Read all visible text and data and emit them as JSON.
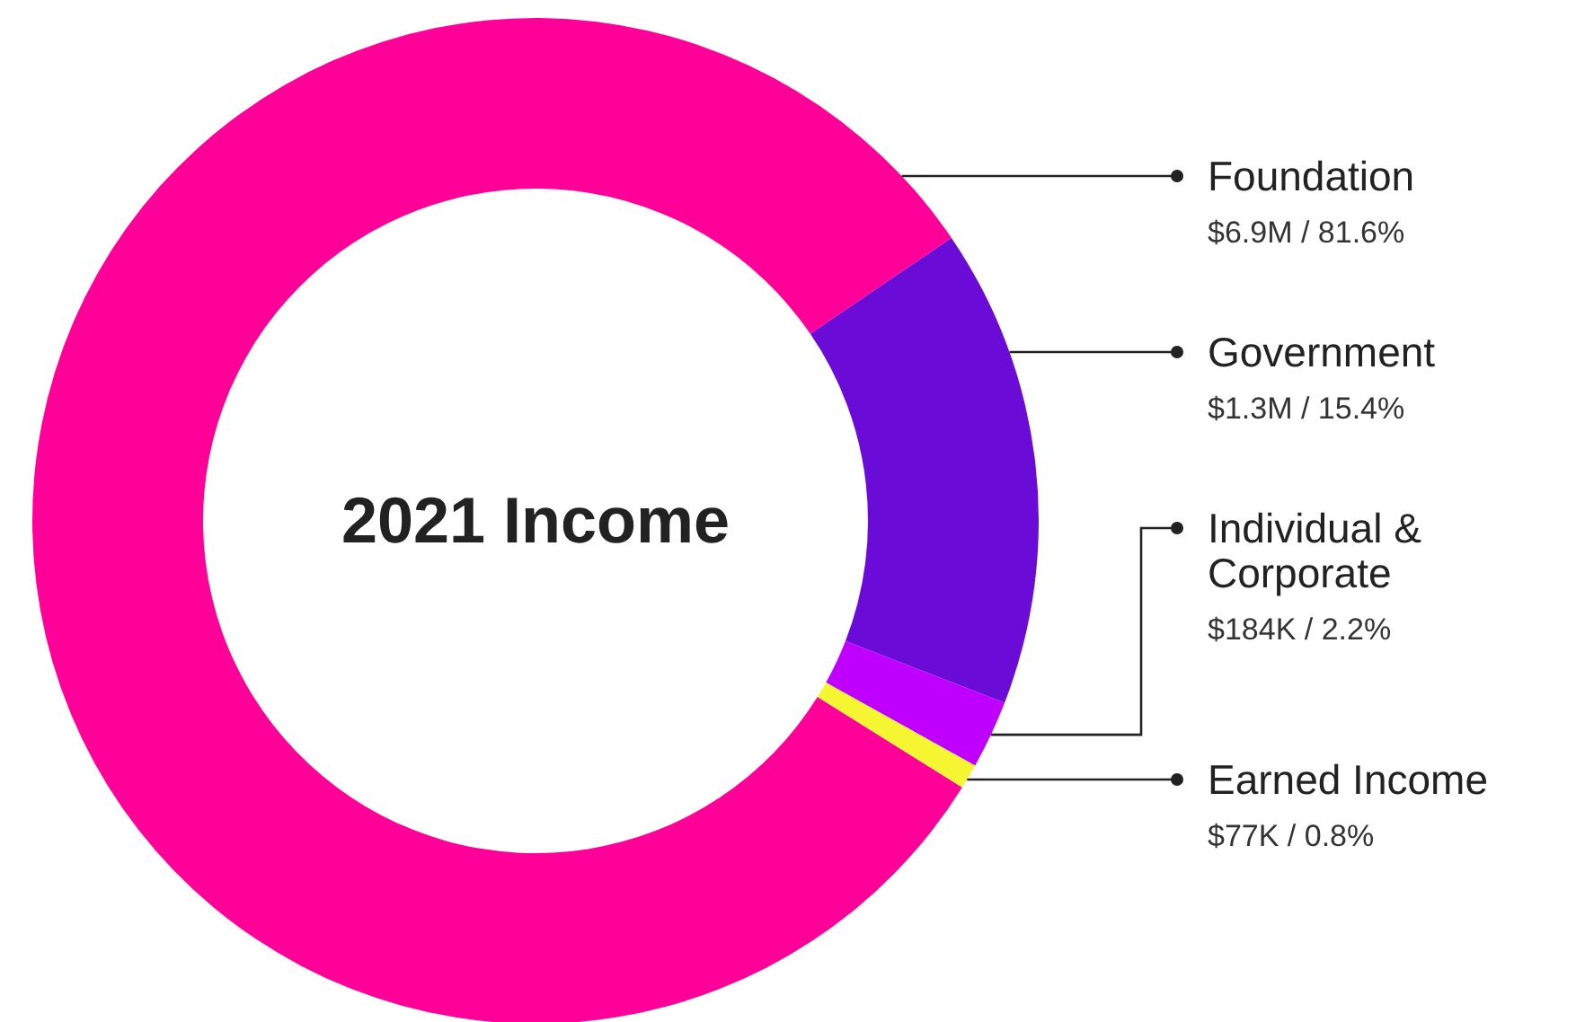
{
  "chart_data": {
    "type": "donut",
    "title": "2021 Income",
    "categories": [
      "Foundation",
      "Government",
      "Individual & Corporate",
      "Earned Income"
    ],
    "values": [
      81.6,
      15.4,
      2.2,
      0.8
    ],
    "colors": [
      "#ff0099",
      "#6b0bd8",
      "#c000ff",
      "#f5f532"
    ],
    "value_labels": [
      "$6.9M / 81.6%",
      "$1.3M / 15.4%",
      "$184K / 2.2%",
      "$77K / 0.8%"
    ],
    "legend": false
  }
}
